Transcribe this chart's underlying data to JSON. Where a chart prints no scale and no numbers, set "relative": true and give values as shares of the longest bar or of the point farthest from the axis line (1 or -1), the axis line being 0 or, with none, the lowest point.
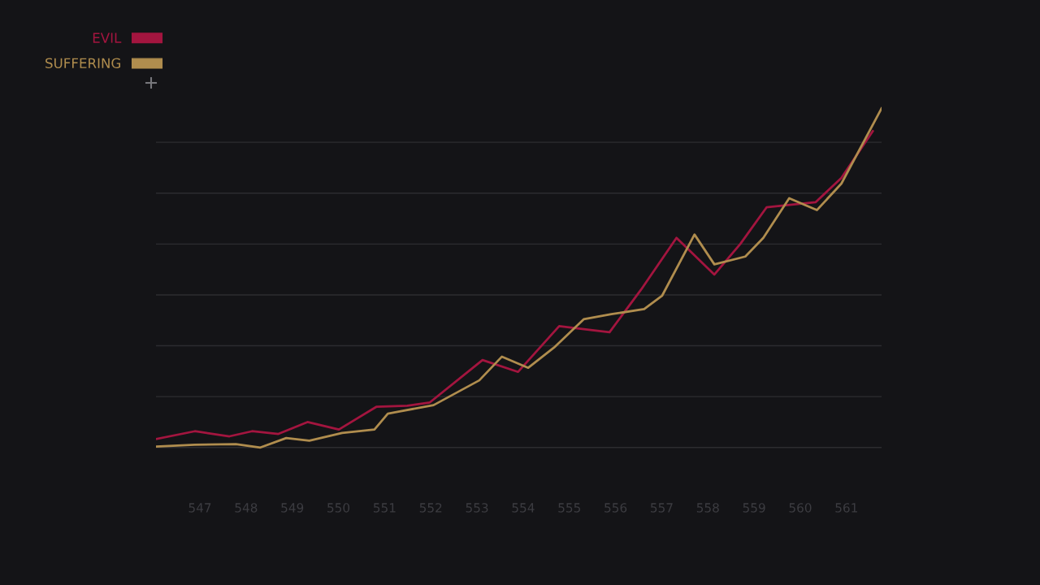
{
  "chart_data": {
    "type": "line",
    "relative": true,
    "xlim": [
      546.05,
      561.76
    ],
    "xticks": [
      547,
      548,
      549,
      550,
      551,
      552,
      553,
      554,
      555,
      556,
      557,
      558,
      559,
      560,
      561
    ],
    "grid": "y",
    "legend": "top left",
    "marker": "none",
    "line_style": "solid",
    "series": [
      {
        "name": "EVIL",
        "color": "#a3153f",
        "x": [
          546.05,
          546.89,
          547.64,
          548.13,
          548.7,
          549.33,
          550.01,
          550.82,
          551.49,
          551.98,
          553.12,
          553.89,
          554.78,
          555.24,
          555.87,
          556.55,
          557.32,
          558.14,
          558.7,
          559.27,
          559.73,
          560.33,
          560.89,
          561.57
        ],
        "values": [
          0.025,
          0.048,
          0.033,
          0.048,
          0.04,
          0.075,
          0.053,
          0.12,
          0.123,
          0.133,
          0.258,
          0.223,
          0.358,
          0.35,
          0.34,
          0.465,
          0.618,
          0.51,
          0.6,
          0.708,
          0.715,
          0.723,
          0.795,
          0.933
        ]
      },
      {
        "name": "SUFFERING",
        "color": "#b08d4e",
        "x": [
          546.05,
          546.89,
          547.78,
          548.31,
          548.87,
          549.37,
          550.08,
          550.78,
          551.07,
          552.06,
          553.05,
          553.54,
          554.11,
          554.67,
          555.31,
          555.91,
          556.62,
          557.01,
          557.71,
          558.14,
          558.81,
          559.2,
          559.76,
          560.36,
          560.89,
          561.76
        ],
        "values": [
          0.003,
          0.008,
          0.01,
          0.0,
          0.028,
          0.02,
          0.043,
          0.053,
          0.1,
          0.125,
          0.198,
          0.268,
          0.235,
          0.295,
          0.378,
          0.393,
          0.408,
          0.448,
          0.628,
          0.54,
          0.563,
          0.618,
          0.735,
          0.7,
          0.778,
          1.0
        ]
      }
    ]
  }
}
